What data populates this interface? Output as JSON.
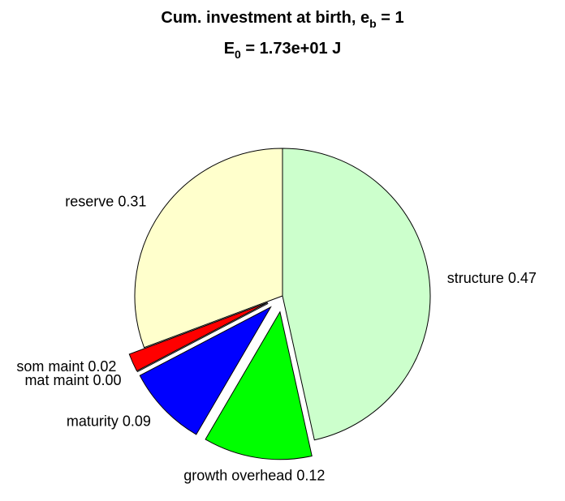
{
  "chart_data": {
    "type": "pie",
    "title": [
      "Cum. investment at birth, e",
      "b",
      " = 1"
    ],
    "subtitle": [
      "E",
      "0",
      " = 1.73e+01 J"
    ],
    "categories": [
      "structure",
      "growth overhead",
      "maturity",
      "mat maint",
      "som maint",
      "reserve"
    ],
    "values": [
      0.47,
      0.12,
      0.09,
      0.0,
      0.02,
      0.31
    ],
    "value_labels": [
      "0.47",
      "0.12",
      "0.09",
      "0.00",
      "0.02",
      "0.31"
    ],
    "colors": [
      "#ccffcc",
      "#00ff00",
      "#0000ff",
      "#000000",
      "#ff0000",
      "#ffffcc"
    ],
    "explode": [
      false,
      true,
      true,
      true,
      true,
      false
    ]
  }
}
